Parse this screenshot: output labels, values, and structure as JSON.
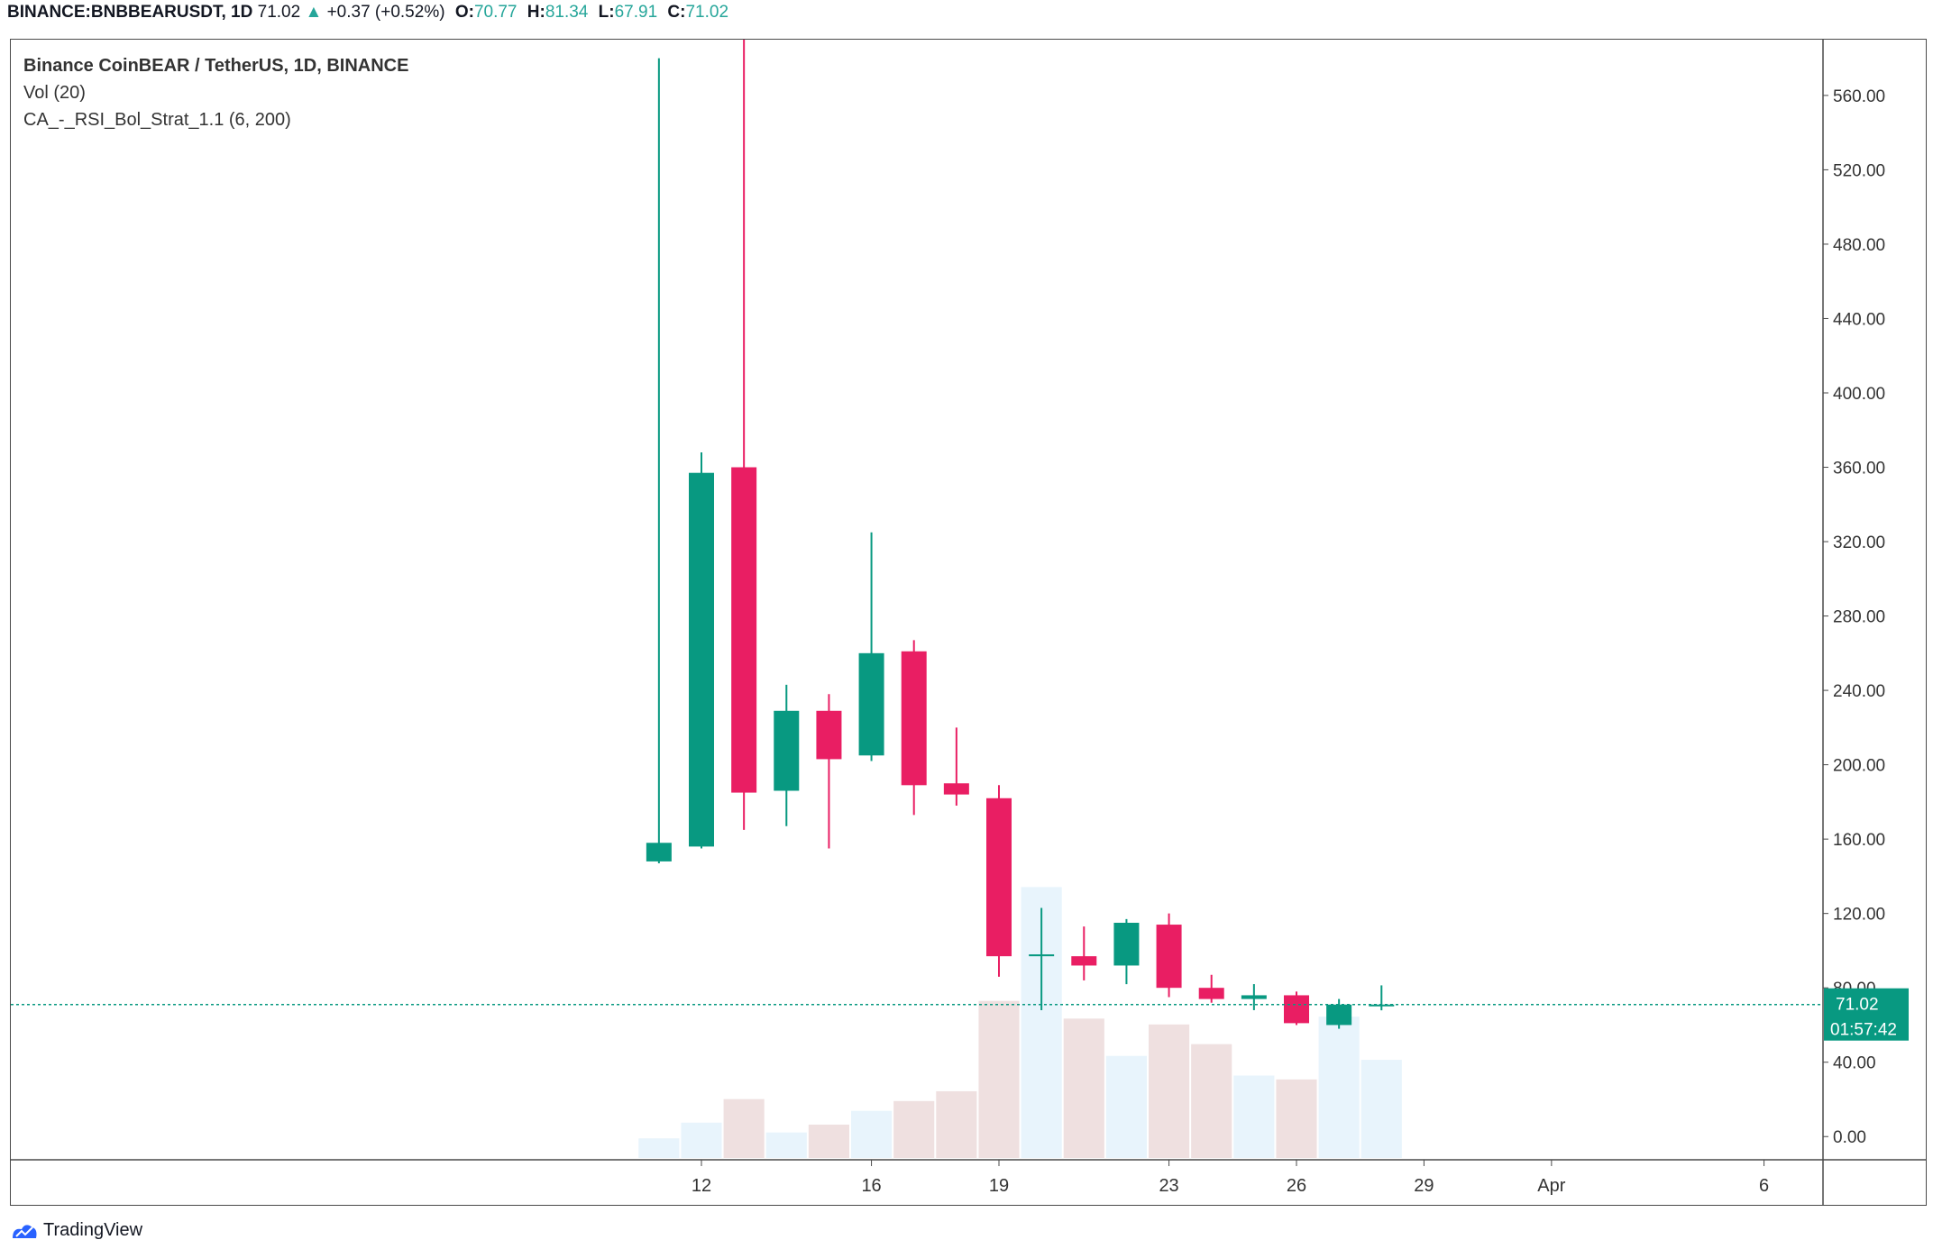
{
  "header": {
    "symbol": "BINANCE:BNBBEARUSDT, 1D",
    "last": "71.02",
    "change": "+0.37 (+0.52%)",
    "open_label": "O:",
    "open": "70.77",
    "high_label": "H:",
    "high": "81.34",
    "low_label": "L:",
    "low": "67.91",
    "close_label": "C:",
    "close": "71.02"
  },
  "legend": {
    "title": "Binance CoinBEAR / TetherUS, 1D, BINANCE",
    "volume": "Vol (20)",
    "strategy": "CA_-_RSI_Bol_Strat_1.1 (6, 200)"
  },
  "price_tag": {
    "price": "71.02",
    "countdown": "01:57:42"
  },
  "colors": {
    "up": "#089981",
    "down": "#e91e63",
    "vol_up": "#e8f4fc",
    "vol_down": "#efe0e0",
    "price_line": "#089981",
    "axis_text": "#333333"
  },
  "footer": {
    "brand": "TradingView"
  },
  "chart_data": {
    "type": "candlestick",
    "x_ticks": [
      "12",
      "16",
      "19",
      "23",
      "26",
      "29",
      "Apr",
      "6"
    ],
    "x_tick_days": [
      12,
      16,
      19,
      23,
      26,
      29,
      32,
      37
    ],
    "y_ticks": [
      "0.00",
      "40.00",
      "80.00",
      "120.00",
      "160.00",
      "200.00",
      "240.00",
      "280.00",
      "320.00",
      "360.00",
      "400.00",
      "440.00",
      "480.00",
      "520.00",
      "560.00"
    ],
    "ylim": [
      -12,
      590
    ],
    "last_price": 71.02,
    "volume_scale_max": 140,
    "candles": [
      {
        "day": 11,
        "o": 148,
        "h": 580,
        "l": 147,
        "c": 158,
        "v": 10
      },
      {
        "day": 12,
        "o": 156,
        "h": 368,
        "l": 155,
        "c": 357,
        "v": 18
      },
      {
        "day": 13,
        "o": 360,
        "h": 600,
        "l": 165,
        "c": 185,
        "v": 30
      },
      {
        "day": 14,
        "o": 186,
        "h": 243,
        "l": 167,
        "c": 229,
        "v": 13
      },
      {
        "day": 15,
        "o": 229,
        "h": 238,
        "l": 155,
        "c": 203,
        "v": 17
      },
      {
        "day": 16,
        "o": 205,
        "h": 325,
        "l": 202,
        "c": 260,
        "v": 24
      },
      {
        "day": 17,
        "o": 261,
        "h": 267,
        "l": 173,
        "c": 189,
        "v": 29
      },
      {
        "day": 18,
        "o": 190,
        "h": 220,
        "l": 178,
        "c": 184,
        "v": 34
      },
      {
        "day": 19,
        "o": 182,
        "h": 189,
        "l": 86,
        "c": 97,
        "v": 80
      },
      {
        "day": 20,
        "o": 97,
        "h": 123,
        "l": 68,
        "c": 98,
        "v": 138
      },
      {
        "day": 21,
        "o": 97,
        "h": 113,
        "l": 84,
        "c": 92,
        "v": 71
      },
      {
        "day": 22,
        "o": 92,
        "h": 117,
        "l": 82,
        "c": 115,
        "v": 52
      },
      {
        "day": 23,
        "o": 114,
        "h": 120,
        "l": 75,
        "c": 80,
        "v": 68
      },
      {
        "day": 24,
        "o": 80,
        "h": 87,
        "l": 72,
        "c": 74,
        "v": 58
      },
      {
        "day": 25,
        "o": 74,
        "h": 82,
        "l": 68,
        "c": 76,
        "v": 42
      },
      {
        "day": 26,
        "o": 76,
        "h": 78,
        "l": 60,
        "c": 61,
        "v": 40
      },
      {
        "day": 27,
        "o": 60,
        "h": 74,
        "l": 58,
        "c": 71,
        "v": 72
      },
      {
        "day": 28,
        "o": 70.77,
        "h": 81.34,
        "l": 67.91,
        "c": 71.02,
        "v": 50
      }
    ]
  }
}
